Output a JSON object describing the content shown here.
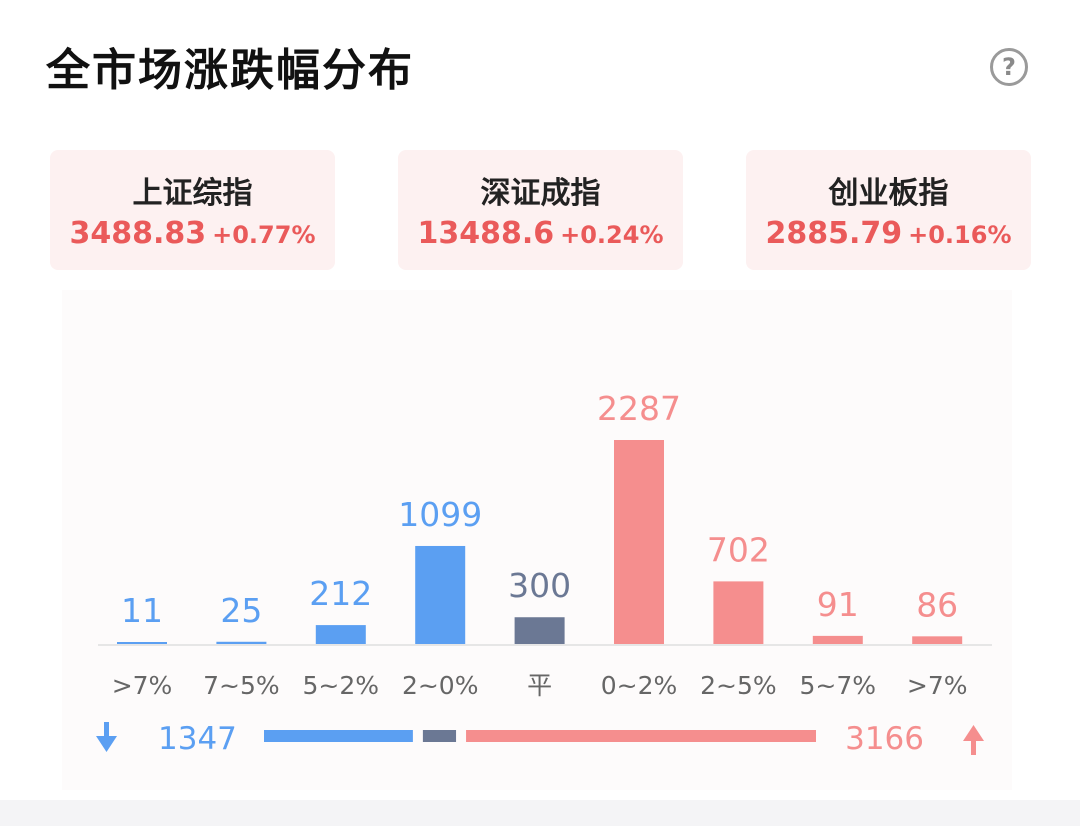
{
  "header": {
    "title": "全市场涨跌幅分布",
    "help_icon": "?"
  },
  "indices": [
    {
      "name": "上证综指",
      "price": "3488.83",
      "change": "+0.77%"
    },
    {
      "name": "深证成指",
      "price": "13488.6",
      "change": "+0.24%"
    },
    {
      "name": "创业板指",
      "price": "2885.79",
      "change": "+0.16%"
    }
  ],
  "colors": {
    "down": "#5b9ff2",
    "flat": "#6b7894",
    "up": "#f58e8e",
    "up_text": "#ea5a5a"
  },
  "chart_data": {
    "type": "bar",
    "categories": [
      ">7%",
      "7~5%",
      "5~2%",
      "2~0%",
      "平",
      "0~2%",
      "2~5%",
      "5~7%",
      ">7%"
    ],
    "values": [
      11,
      25,
      212,
      1099,
      300,
      2287,
      702,
      91,
      86
    ],
    "groups": [
      "down",
      "down",
      "down",
      "down",
      "flat",
      "up",
      "up",
      "up",
      "up"
    ],
    "summary": {
      "down_total": "1347",
      "up_total": "3166",
      "flat_total": 300
    }
  }
}
